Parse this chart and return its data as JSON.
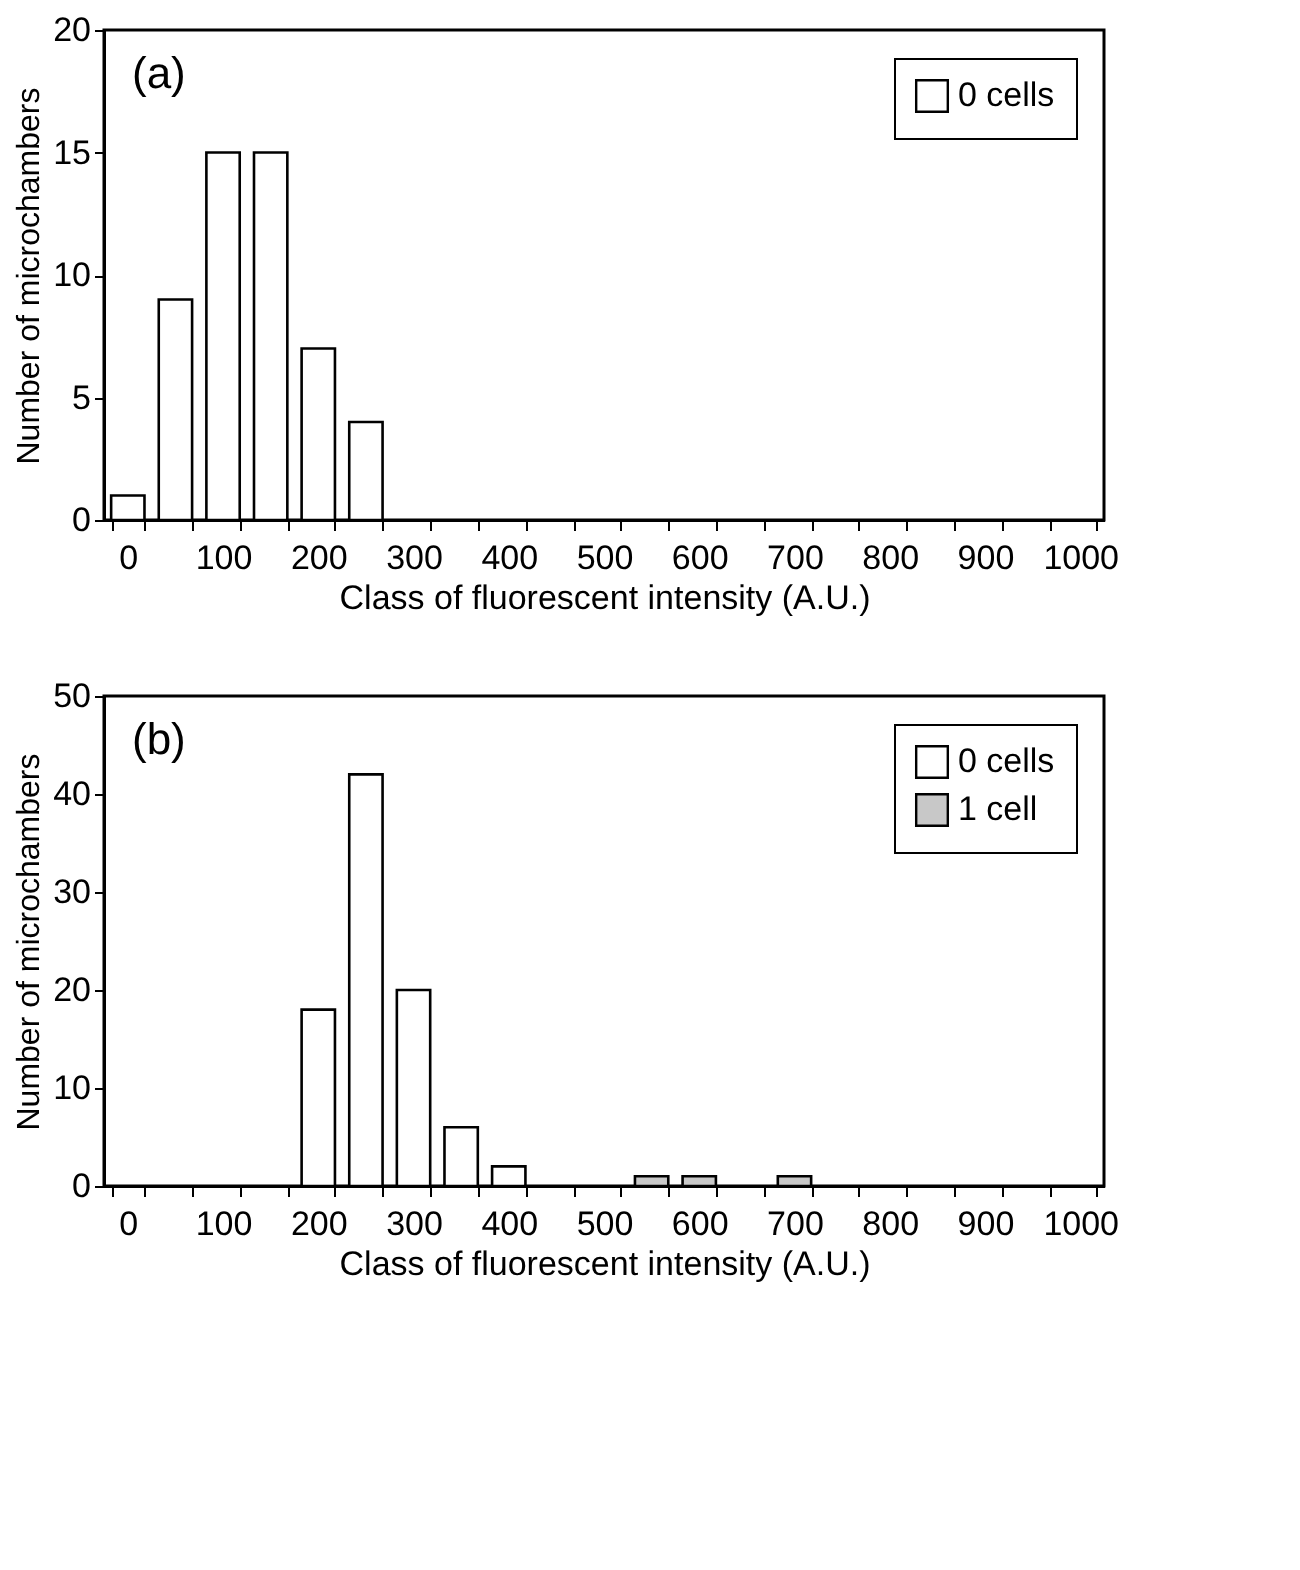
{
  "chart_data": [
    {
      "type": "bar",
      "annotations": [
        "(a)"
      ],
      "xlabel": "Class of fluorescent intensity (A.U.)",
      "ylabel": "Number of microchambers",
      "categories": [
        "0",
        null,
        "100",
        null,
        "200",
        null,
        "300",
        null,
        "400",
        null,
        "500",
        null,
        "600",
        null,
        "700",
        null,
        "800",
        null,
        "900",
        null,
        "1000"
      ],
      "series": [
        {
          "name": "0 cells",
          "color": "#ffffff",
          "values": [
            1,
            9,
            15,
            15,
            7,
            4,
            null,
            null,
            null,
            null,
            null,
            null,
            null,
            null,
            null,
            null,
            null,
            null,
            null,
            null,
            null
          ]
        }
      ],
      "ylim": [
        0,
        20
      ],
      "yticks": [
        0,
        5,
        10,
        15,
        20
      ],
      "grid": false,
      "legend": "top right"
    },
    {
      "type": "bar",
      "annotations": [
        "(b)"
      ],
      "xlabel": "Class of fluorescent intensity (A.U.)",
      "ylabel": "Number of microchambers",
      "categories": [
        "0",
        null,
        "100",
        null,
        "200",
        null,
        "300",
        null,
        "400",
        null,
        "500",
        null,
        "600",
        null,
        "700",
        null,
        "800",
        null,
        "900",
        null,
        "1000"
      ],
      "series": [
        {
          "name": "0 cells",
          "color": "#ffffff",
          "values": [
            null,
            null,
            null,
            null,
            18,
            42,
            20,
            6,
            2,
            null,
            null,
            null,
            null,
            null,
            null,
            null,
            null,
            null,
            null,
            null,
            null
          ]
        },
        {
          "name": "1 cell",
          "color": "#c8c8c8",
          "values": [
            null,
            null,
            null,
            null,
            null,
            null,
            null,
            null,
            null,
            null,
            null,
            1,
            1,
            null,
            1,
            null,
            null,
            null,
            null,
            null,
            null
          ]
        }
      ],
      "ylim": [
        0,
        50
      ],
      "yticks": [
        0,
        10,
        20,
        30,
        40,
        50
      ],
      "grid": false,
      "legend": "top right"
    }
  ]
}
